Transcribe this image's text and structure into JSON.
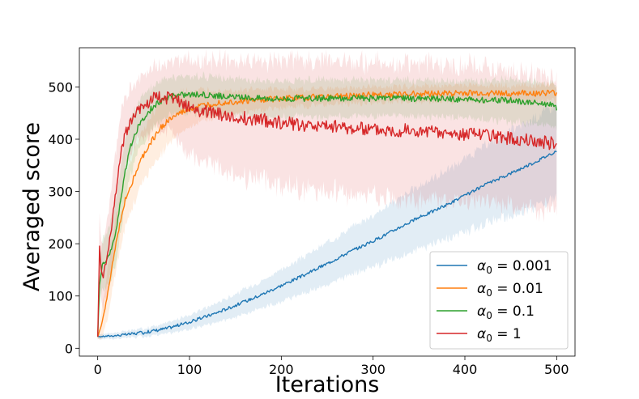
{
  "chart_data": {
    "type": "line",
    "title": "",
    "xlabel": "Iterations",
    "ylabel": "Averaged score",
    "xlim": [
      -20,
      520
    ],
    "ylim": [
      -15,
      575
    ],
    "xticks": [
      0,
      100,
      200,
      300,
      400,
      500
    ],
    "yticks": [
      0,
      100,
      200,
      300,
      400,
      500
    ],
    "grid": false,
    "legend_position": "lower-right",
    "series": [
      {
        "name": "α0 = 0.001",
        "legend_base": "α",
        "legend_sub": "0",
        "legend_value": " = 0.001",
        "color": "#1f77b4",
        "x": [
          0,
          25,
          50,
          75,
          100,
          125,
          150,
          175,
          200,
          225,
          250,
          275,
          300,
          325,
          350,
          375,
          400,
          425,
          450,
          475,
          500
        ],
        "values": [
          22,
          25,
          30,
          38,
          50,
          65,
          82,
          100,
          120,
          140,
          162,
          185,
          205,
          228,
          250,
          270,
          292,
          315,
          335,
          355,
          378
        ],
        "band": [
          5,
          6,
          8,
          10,
          14,
          18,
          22,
          26,
          30,
          35,
          40,
          45,
          50,
          55,
          60,
          65,
          70,
          75,
          80,
          85,
          90
        ]
      },
      {
        "name": "α0 = 0.01",
        "legend_base": "α",
        "legend_sub": "0",
        "legend_value": " = 0.01",
        "color": "#ff7f0e",
        "x": [
          0,
          5,
          10,
          15,
          20,
          25,
          30,
          40,
          50,
          60,
          70,
          80,
          90,
          100,
          110,
          120,
          130,
          150,
          175,
          200,
          250,
          300,
          350,
          400,
          450,
          500
        ],
        "values": [
          22,
          50,
          95,
          150,
          200,
          245,
          285,
          330,
          370,
          400,
          425,
          440,
          450,
          458,
          462,
          466,
          470,
          472,
          475,
          478,
          482,
          485,
          487,
          488,
          488,
          488
        ],
        "band": [
          5,
          30,
          45,
          50,
          50,
          50,
          50,
          50,
          50,
          50,
          50,
          45,
          40,
          35,
          30,
          28,
          25,
          22,
          20,
          18,
          15,
          15,
          15,
          15,
          15,
          15
        ]
      },
      {
        "name": "α0 = 0.1",
        "legend_base": "α",
        "legend_sub": "0",
        "legend_value": " = 0.1",
        "color": "#2ca02c",
        "x": [
          0,
          2,
          5,
          10,
          15,
          20,
          25,
          30,
          35,
          40,
          50,
          60,
          70,
          80,
          90,
          100,
          125,
          150,
          200,
          250,
          300,
          350,
          400,
          450,
          490,
          500
        ],
        "values": [
          22,
          120,
          160,
          170,
          190,
          225,
          285,
          340,
          380,
          410,
          440,
          462,
          475,
          482,
          485,
          486,
          484,
          480,
          478,
          478,
          478,
          478,
          476,
          474,
          468,
          460
        ],
        "band": [
          5,
          40,
          50,
          50,
          55,
          60,
          60,
          60,
          55,
          50,
          45,
          40,
          38,
          35,
          35,
          35,
          35,
          35,
          35,
          35,
          35,
          35,
          35,
          40,
          40,
          40
        ]
      },
      {
        "name": "α0 = 1",
        "legend_base": "α",
        "legend_sub": "0",
        "legend_value": " = 1",
        "color": "#d62728",
        "x": [
          0,
          2,
          4,
          6,
          10,
          15,
          20,
          25,
          30,
          35,
          40,
          50,
          60,
          70,
          80,
          90,
          100,
          125,
          150,
          175,
          200,
          225,
          250,
          275,
          300,
          325,
          350,
          375,
          400,
          425,
          450,
          475,
          500
        ],
        "values": [
          22,
          192,
          150,
          140,
          170,
          230,
          300,
          370,
          410,
          430,
          448,
          465,
          478,
          482,
          478,
          470,
          460,
          450,
          442,
          438,
          432,
          428,
          425,
          422,
          420,
          418,
          415,
          412,
          410,
          406,
          402,
          398,
          390
        ],
        "band": [
          5,
          60,
          60,
          60,
          70,
          80,
          80,
          75,
          70,
          65,
          60,
          60,
          60,
          60,
          70,
          80,
          90,
          100,
          110,
          115,
          120,
          122,
          124,
          126,
          128,
          130,
          130,
          130,
          130,
          130,
          130,
          130,
          130
        ]
      }
    ]
  }
}
